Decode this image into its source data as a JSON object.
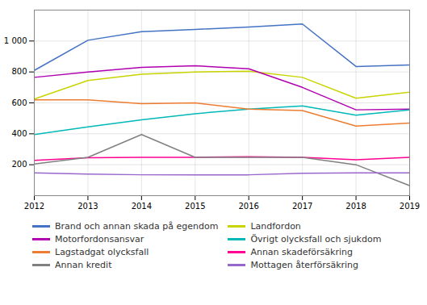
{
  "chart_data": {
    "type": "line",
    "x": [
      2012,
      2013,
      2014,
      2015,
      2016,
      2017,
      2018,
      2019
    ],
    "series": [
      {
        "name": "Brand och annan skada på egendom",
        "color": "#4472c4",
        "values": [
          810,
          1005,
          1060,
          1075,
          1090,
          1110,
          835,
          845
        ]
      },
      {
        "name": "Landfordon",
        "color": "#c8d400",
        "values": [
          625,
          745,
          785,
          800,
          805,
          765,
          630,
          670
        ]
      },
      {
        "name": "Motorfordonsansvar",
        "color": "#b000b0",
        "values": [
          765,
          800,
          830,
          840,
          820,
          700,
          555,
          560
        ]
      },
      {
        "name": "Övrigt olycksfall och sjukdom",
        "color": "#00b8b8",
        "values": [
          395,
          445,
          490,
          530,
          560,
          580,
          520,
          555
        ]
      },
      {
        "name": "Lagstadgat olycksfall",
        "color": "#ed7d31",
        "values": [
          620,
          620,
          595,
          600,
          560,
          550,
          450,
          470
        ]
      },
      {
        "name": "Annan skadeförsäkring",
        "color": "#ff0090",
        "values": [
          228,
          245,
          248,
          248,
          252,
          248,
          232,
          248
        ]
      },
      {
        "name": "Annan kredit",
        "color": "#808080",
        "values": [
          205,
          248,
          395,
          248,
          248,
          248,
          200,
          65
        ]
      },
      {
        "name": "Mottagen återförsäkring",
        "color": "#9966cc",
        "values": [
          148,
          140,
          135,
          135,
          135,
          145,
          148,
          148
        ]
      }
    ],
    "xlim": [
      2012,
      2019
    ],
    "xticks": [
      2012,
      2013,
      2014,
      2015,
      2016,
      2017,
      2018,
      2019
    ],
    "ylim": [
      0,
      1200
    ],
    "yticks": [
      200,
      400,
      600,
      800,
      {
        "value": 1000,
        "label": "1 000"
      }
    ],
    "grid": true,
    "legend": "bottom"
  }
}
